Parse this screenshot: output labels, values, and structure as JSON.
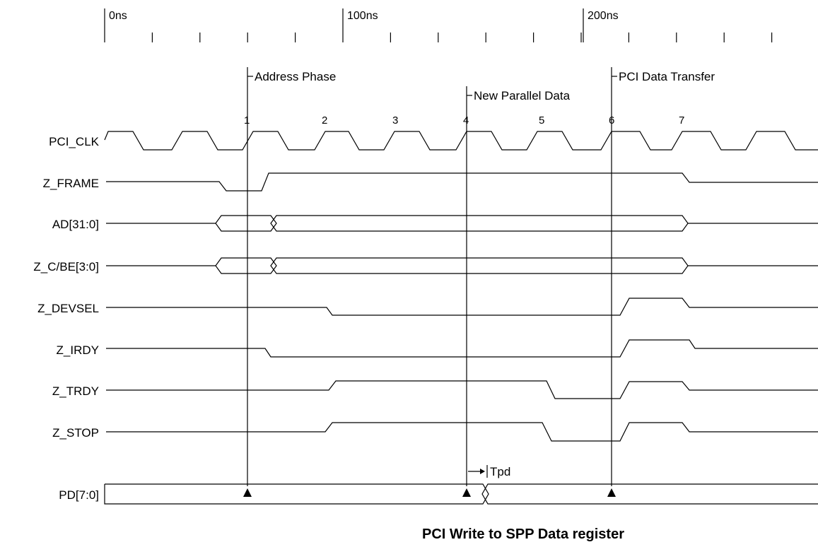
{
  "title": "PCI Write to SPP Data register",
  "time_scale": {
    "labels": [
      "0ns",
      "100ns",
      "200ns"
    ]
  },
  "markers": [
    {
      "label": "Address Phase"
    },
    {
      "label": "New Parallel Data"
    },
    {
      "label": "PCI Data Transfer"
    }
  ],
  "clock_edges": [
    "1",
    "2",
    "3",
    "4",
    "5",
    "6",
    "7"
  ],
  "signals": [
    {
      "name": "PCI_CLK"
    },
    {
      "name": "Z_FRAME"
    },
    {
      "name": "AD[31:0]"
    },
    {
      "name": "Z_C/BE[3:0]"
    },
    {
      "name": "Z_DEVSEL"
    },
    {
      "name": "Z_IRDY"
    },
    {
      "name": "Z_TRDY"
    },
    {
      "name": "Z_STOP"
    },
    {
      "name": "PD[7:0]"
    }
  ],
  "delay_annotation": "Tpd"
}
